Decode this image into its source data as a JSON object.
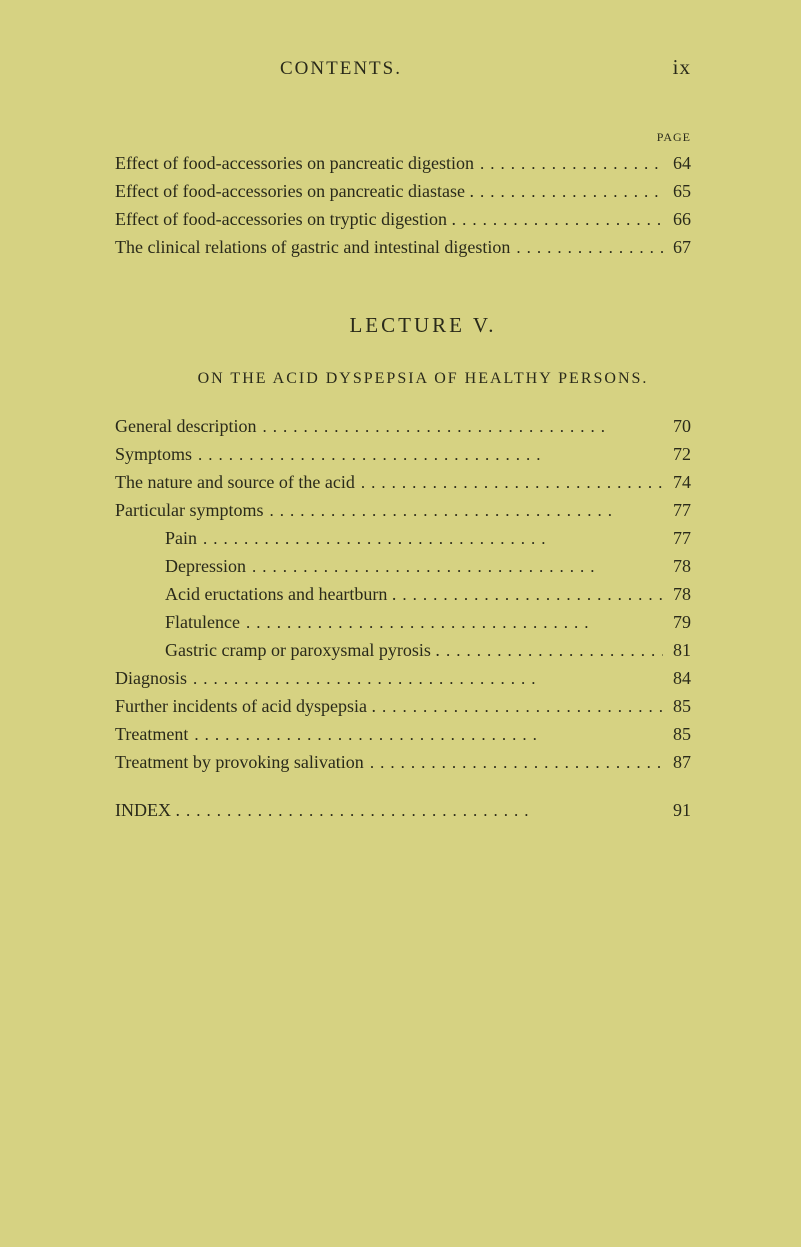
{
  "header": {
    "title": "CONTENTS.",
    "page_number": "ix",
    "page_label": "PAGE"
  },
  "section1": {
    "lines": [
      {
        "text": "Effect of food-accessories on pancreatic digestion",
        "page": "64",
        "indent": false
      },
      {
        "text": "Effect of food-accessories on pancreatic diastase .",
        "page": "65",
        "indent": false
      },
      {
        "text": "Effect of food-accessories on tryptic digestion .",
        "page": "66",
        "indent": false
      },
      {
        "text": "The clinical relations of gastric and intestinal digestion",
        "page": "67",
        "indent": false
      }
    ]
  },
  "lecture": {
    "heading": "LECTURE V.",
    "subtitle": "ON THE ACID DYSPEPSIA OF HEALTHY PERSONS."
  },
  "section2": {
    "lines": [
      {
        "text": "General description",
        "page": "70",
        "indent": false
      },
      {
        "text": "Symptoms",
        "page": "72",
        "indent": false
      },
      {
        "text": "The nature and source of the acid",
        "page": "74",
        "indent": false
      },
      {
        "text": "Particular symptoms",
        "page": "77",
        "indent": false
      },
      {
        "text": "Pain",
        "page": "77",
        "indent": true
      },
      {
        "text": "Depression",
        "page": "78",
        "indent": true
      },
      {
        "text": "Acid eructations and heartburn .",
        "page": "78",
        "indent": true
      },
      {
        "text": "Flatulence",
        "page": "79",
        "indent": true
      },
      {
        "text": "Gastric cramp or paroxysmal pyrosis .",
        "page": "81",
        "indent": true
      },
      {
        "text": "Diagnosis",
        "page": "84",
        "indent": false
      },
      {
        "text": "Further incidents of acid dyspepsia .",
        "page": "85",
        "indent": false
      },
      {
        "text": "Treatment",
        "page": "85",
        "indent": false
      },
      {
        "text": "Treatment by provoking salivation",
        "page": "87",
        "indent": false
      }
    ]
  },
  "index": {
    "text": "INDEX .",
    "page": "91"
  },
  "dots": ".................................."
}
